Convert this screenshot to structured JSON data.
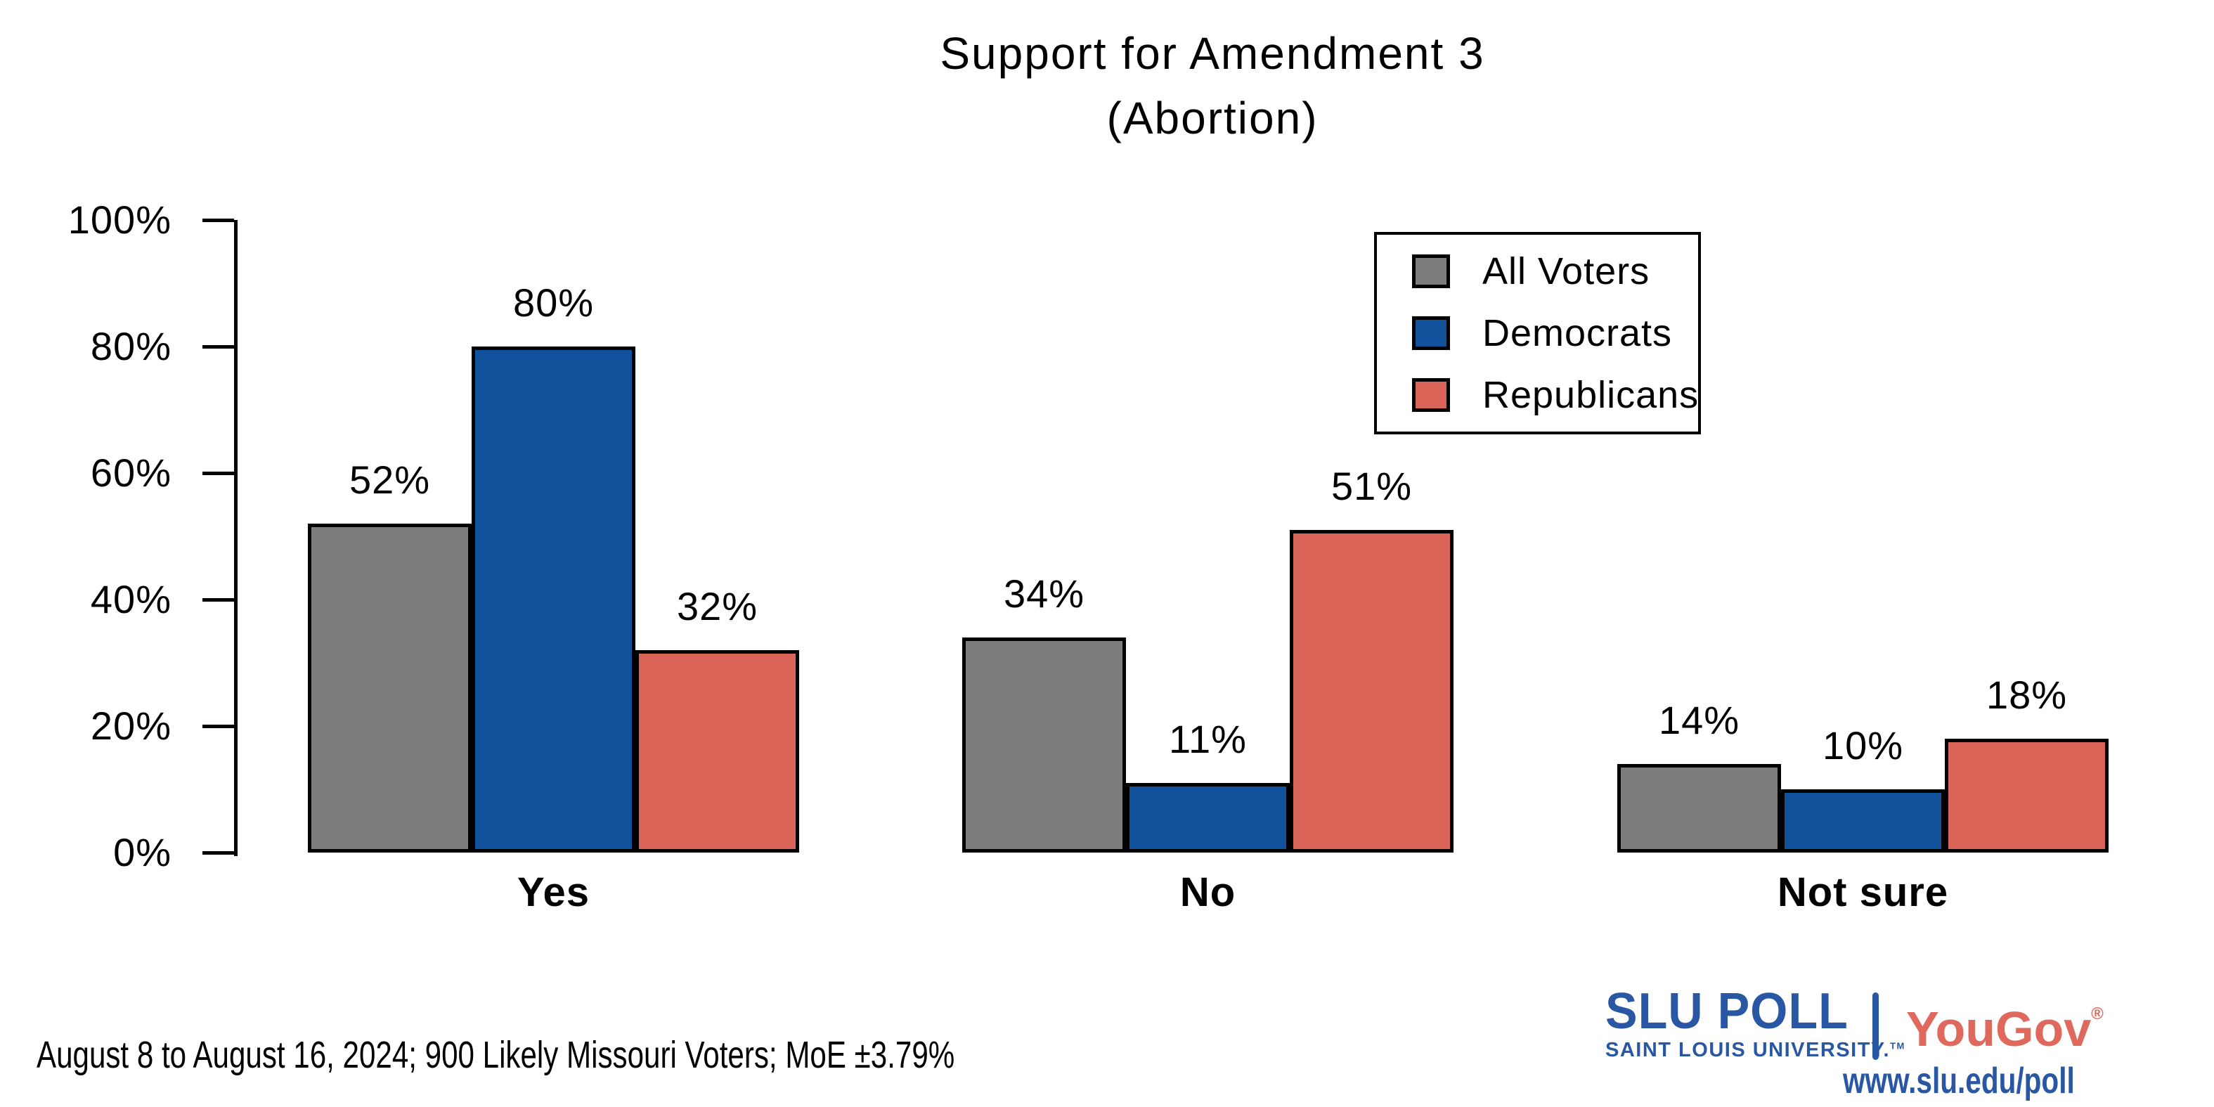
{
  "chart_data": {
    "type": "bar",
    "title": "Support for Amendment 3",
    "subtitle": "(Abortion)",
    "categories": [
      "Yes",
      "No",
      "Not sure"
    ],
    "series": [
      {
        "name": "All Voters",
        "color": "#7c7c7c",
        "values": [
          52,
          34,
          14
        ]
      },
      {
        "name": "Democrats",
        "color": "#12529c",
        "values": [
          80,
          11,
          10
        ]
      },
      {
        "name": "Republicans",
        "color": "#da6457",
        "values": [
          32,
          51,
          18
        ]
      }
    ],
    "value_suffix": "%",
    "ylim": [
      0,
      100
    ],
    "ytick_values": [
      0,
      20,
      40,
      60,
      80,
      100
    ],
    "ytick_labels": [
      "0%",
      "20%",
      "40%",
      "60%",
      "80%",
      "100%"
    ],
    "grid": false,
    "legend_position": "top-right",
    "bar_border_color": "#000000"
  },
  "caption": "August 8 to August 16, 2024; 900 Likely Missouri Voters; MoE ±3.79%",
  "footer": {
    "slu": "SLU",
    "poll": "POLL",
    "slu_subtitle": "SAINT LOUIS UNIVERSITY.",
    "tm": "TM",
    "yougov": "YouGov",
    "registered": "®",
    "url": "www.slu.edu/poll",
    "slu_color": "#2a57a4",
    "yougov_color": "#df695c"
  }
}
